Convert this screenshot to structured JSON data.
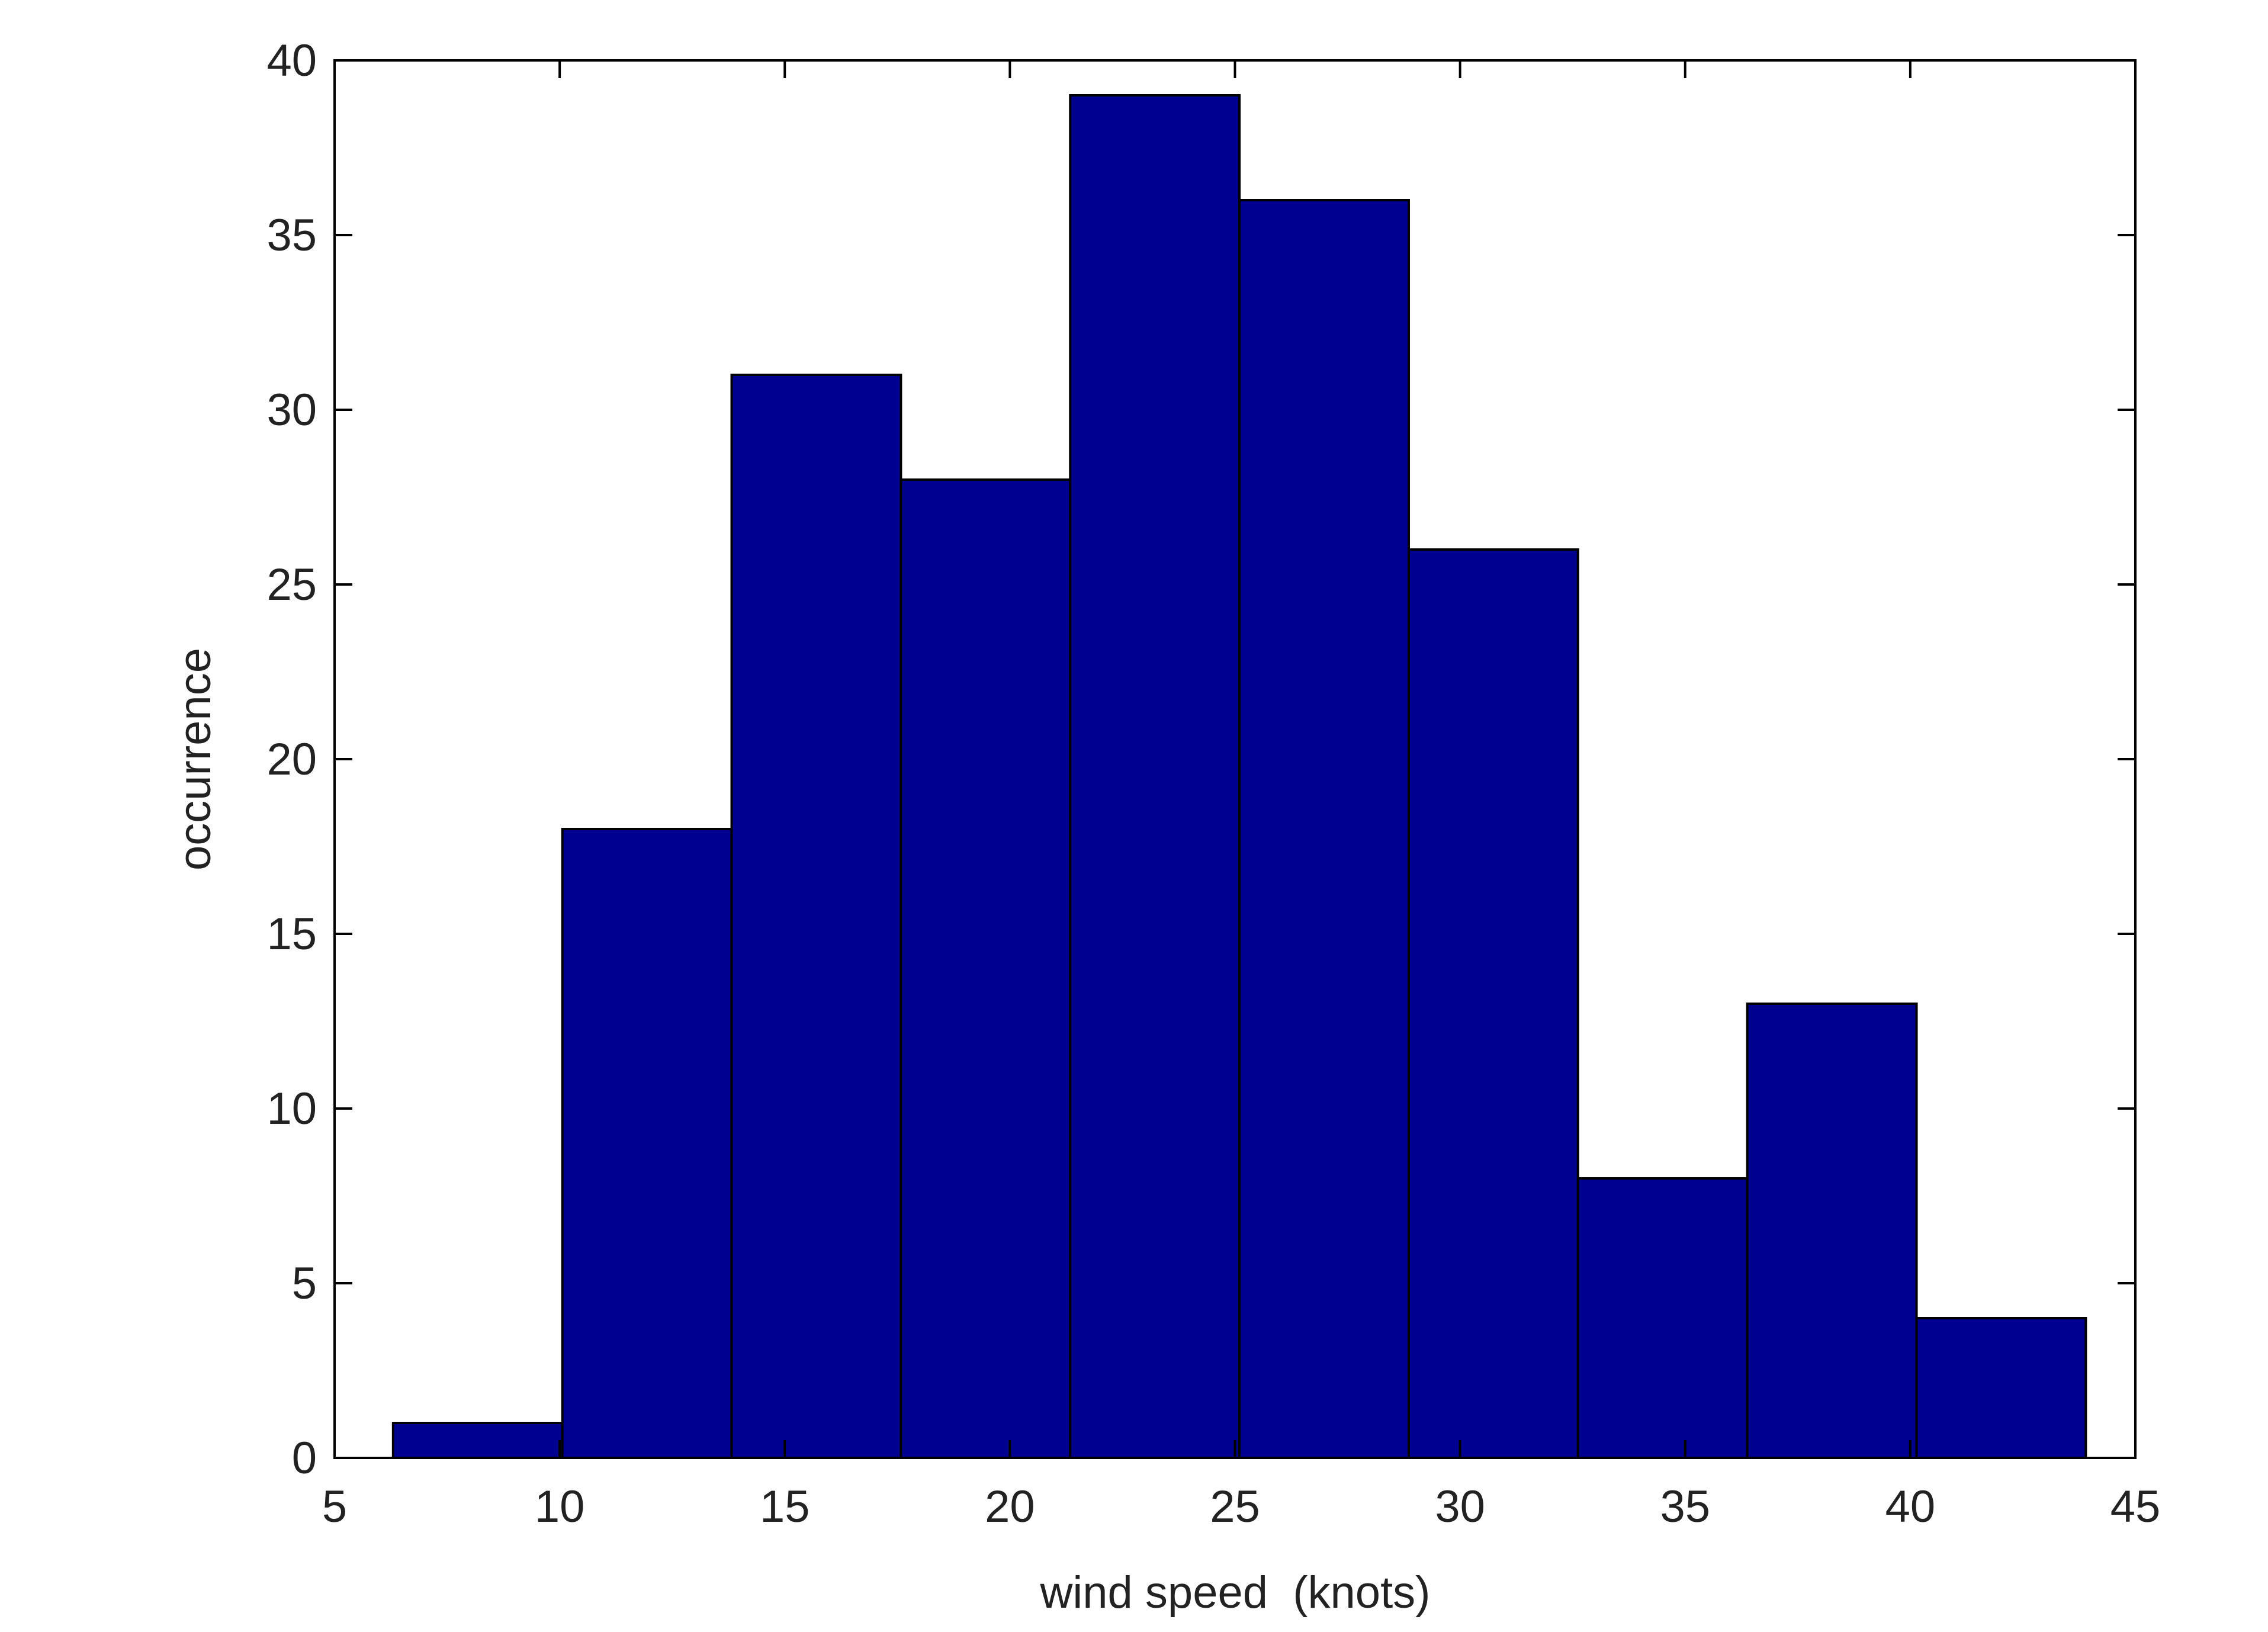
{
  "chart_data": {
    "type": "histogram",
    "xlabel": "wind speed  (knots)",
    "ylabel": "occurrence",
    "bins": [
      6.3,
      10.06,
      13.82,
      17.58,
      21.34,
      25.1,
      28.86,
      32.62,
      36.38,
      40.14,
      43.9
    ],
    "values": [
      1,
      18,
      31,
      28,
      39,
      36,
      26,
      8,
      13,
      4
    ],
    "color": "#000090",
    "xlim": [
      5,
      45
    ],
    "xticks": [
      5,
      10,
      15,
      20,
      25,
      30,
      35,
      40,
      45
    ],
    "ylim": [
      0,
      40
    ],
    "yticks": [
      0,
      5,
      10,
      15,
      20,
      25,
      30,
      35,
      40
    ]
  }
}
